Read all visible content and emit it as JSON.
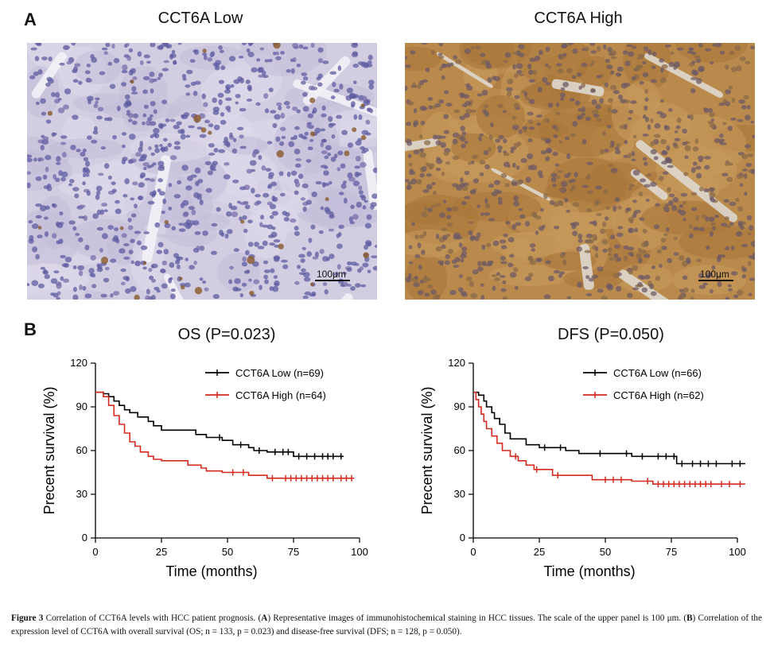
{
  "panel_a": {
    "letter": "A",
    "low_title": "CCT6A Low",
    "high_title": "CCT6A High",
    "scale_bar": "100μm"
  },
  "panel_b": {
    "letter": "B"
  },
  "chart_data": [
    {
      "type": "line",
      "title": "OS (P=0.023)",
      "xlabel": "Time (months)",
      "ylabel": "Precent survival (%)",
      "xlim": [
        0,
        100
      ],
      "ylim": [
        0,
        120
      ],
      "xticks": [
        0,
        25,
        50,
        75,
        100
      ],
      "yticks": [
        0,
        30,
        60,
        90,
        120
      ],
      "legend_position": "top-right",
      "series": [
        {
          "name": "CCT6A Low (n=69)",
          "color": "#000000",
          "x": [
            0,
            3,
            5,
            7,
            9,
            11,
            13,
            16,
            20,
            22,
            25,
            38,
            42,
            48,
            52,
            58,
            60,
            65,
            70,
            75,
            94
          ],
          "y": [
            100,
            99,
            97,
            94,
            91,
            88,
            86,
            83,
            80,
            77,
            74,
            71,
            69,
            67,
            64,
            62,
            60,
            59,
            59,
            56,
            56
          ],
          "censor_x": [
            47,
            55,
            62,
            68,
            71,
            73,
            77,
            80,
            83,
            86,
            88,
            90,
            93
          ]
        },
        {
          "name": "CCT6A High (n=64)",
          "color": "#d62a1e",
          "x": [
            0,
            3,
            5,
            7,
            9,
            11,
            13,
            15,
            17,
            20,
            22,
            25,
            35,
            40,
            42,
            48,
            58,
            65,
            98
          ],
          "y": [
            100,
            97,
            91,
            84,
            78,
            72,
            66,
            63,
            59,
            56,
            54,
            53,
            50,
            48,
            46,
            45,
            43,
            41,
            41
          ],
          "censor_x": [
            52,
            56,
            67,
            72,
            74,
            76,
            78,
            80,
            82,
            84,
            86,
            88,
            90,
            93,
            95,
            97
          ]
        }
      ]
    },
    {
      "type": "line",
      "title": "DFS (P=0.050)",
      "xlabel": "Time (months)",
      "ylabel": "Precent survival (%)",
      "xlim": [
        0,
        100
      ],
      "ylim": [
        0,
        120
      ],
      "xticks": [
        0,
        25,
        50,
        75,
        100
      ],
      "yticks": [
        0,
        30,
        60,
        90,
        120
      ],
      "legend_position": "top-right",
      "series": [
        {
          "name": "CCT6A Low (n=66)",
          "color": "#000000",
          "x": [
            0,
            2,
            4,
            5,
            7,
            8,
            10,
            12,
            14,
            20,
            25,
            35,
            40,
            60,
            77,
            103
          ],
          "y": [
            100,
            98,
            94,
            90,
            86,
            82,
            78,
            72,
            68,
            64,
            62,
            60,
            58,
            56,
            51,
            51
          ],
          "censor_x": [
            27,
            33,
            48,
            58,
            64,
            70,
            73,
            76,
            79,
            83,
            86,
            89,
            92,
            98,
            101
          ]
        },
        {
          "name": "CCT6A High (n=62)",
          "color": "#d62a1e",
          "x": [
            0,
            1,
            2,
            3,
            4,
            5,
            7,
            9,
            11,
            14,
            17,
            20,
            23,
            30,
            45,
            60,
            68,
            103
          ],
          "y": [
            100,
            95,
            90,
            85,
            80,
            75,
            70,
            65,
            60,
            56,
            53,
            50,
            47,
            43,
            40,
            39,
            37,
            37
          ],
          "censor_x": [
            16,
            24,
            32,
            50,
            53,
            56,
            66,
            70,
            72,
            74,
            76,
            78,
            80,
            82,
            84,
            86,
            88,
            90,
            94,
            97,
            101
          ]
        }
      ]
    }
  ],
  "caption": {
    "fig_label": "Figure 3",
    "p1": " Correlation of CCT6A levels with HCC patient prognosis. (",
    "a": "A",
    "p2": ") Representative images of immunohistochemical staining in HCC tissues. The scale of the upper panel is 100 μm. (",
    "b": "B",
    "p3": ") Correlation of the expression level of CCT6A with overall survival (OS; n = 133, p = 0.023) and disease-free survival (DFS; n = 128, p = 0.050)."
  }
}
